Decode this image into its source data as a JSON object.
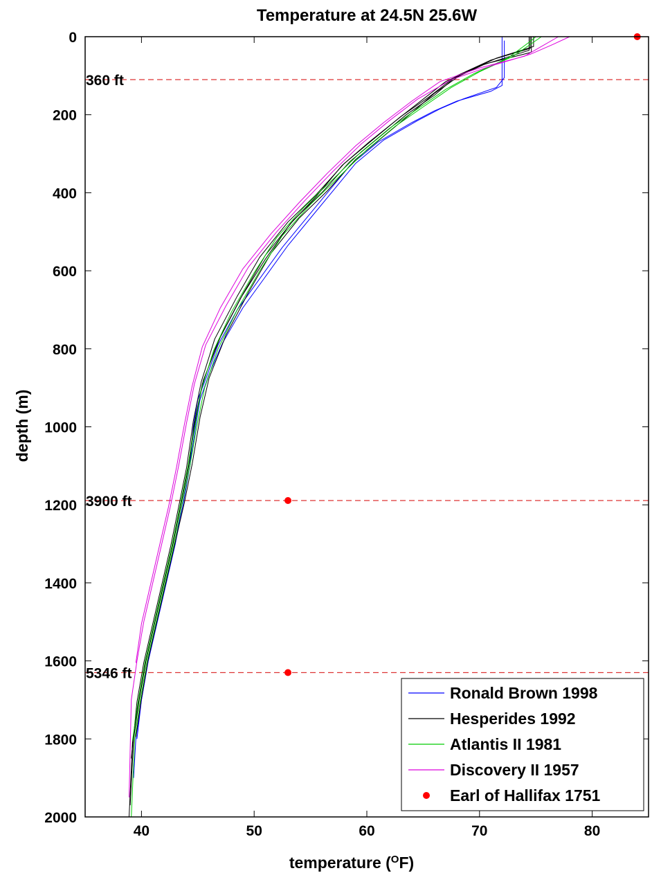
{
  "chart_data": {
    "type": "line",
    "title": "Temperature at 24.5N 25.6W",
    "xlabel": "temperature (",
    "xlabel_unit_symbol": "O",
    "xlabel_unit": "F)",
    "ylabel": "depth (m)",
    "xlim": [
      35,
      85
    ],
    "ylim": [
      0,
      2000
    ],
    "y_reversed": true,
    "grid": false,
    "legend_position": "bottom-right",
    "x_ticks": [
      "40",
      "50",
      "60",
      "70",
      "80"
    ],
    "y_ticks": [
      "0",
      "200",
      "400",
      "600",
      "800",
      "1000",
      "1200",
      "1400",
      "1600",
      "1800",
      "2000"
    ],
    "reference_lines": [
      {
        "label": "360 ft",
        "depth": 110
      },
      {
        "label": "3900 ft",
        "depth": 1189
      },
      {
        "label": "5346 ft",
        "depth": 1630
      }
    ],
    "series": [
      {
        "name": "Ronald Brown 1998",
        "color": "#0000ff",
        "style": "line",
        "curves": [
          {
            "x": [
              72.0,
              72.0,
              72.0,
              72.0,
              71.0,
              68.0,
              66.0,
              64.0,
              61.0,
              58.5,
              56.5,
              54.5,
              52.5,
              50.5,
              48.5,
              46.8,
              45.8,
              45.0,
              44.6,
              44.3,
              43.6,
              43.0,
              42.2,
              41.4,
              40.6,
              40.0,
              39.5,
              39.3
            ],
            "y": [
              0,
              100,
              110,
              125,
              140,
              165,
              190,
              220,
              270,
              330,
              400,
              470,
              540,
              620,
              700,
              790,
              870,
              930,
              1000,
              1100,
              1200,
              1300,
              1400,
              1500,
              1600,
              1700,
              1800,
              1900
            ]
          },
          {
            "x": [
              72.2,
              72.2,
              71.5,
              68.5,
              66.5,
              64.5,
              61.5,
              59.0,
              57.0,
              55.0,
              53.0,
              51.0,
              49.0,
              47.2,
              46.0,
              45.2,
              44.8,
              44.3,
              43.7,
              43.0,
              42.2,
              41.4,
              40.6,
              40.0,
              39.6
            ],
            "y": [
              10,
              105,
              130,
              160,
              185,
              215,
              265,
              325,
              395,
              465,
              535,
              615,
              695,
              785,
              865,
              930,
              1000,
              1100,
              1200,
              1300,
              1400,
              1500,
              1600,
              1700,
              1800
            ]
          }
        ]
      },
      {
        "name": "Hesperides 1992",
        "color": "#000000",
        "style": "line",
        "curves": [
          {
            "x": [
              74.5,
              74.5,
              71.0,
              68.0,
              66.0,
              63.5,
              61.0,
              58.5,
              56.0,
              53.5,
              51.0,
              49.0,
              47.0,
              45.5,
              44.8,
              44.2,
              43.5,
              42.8,
              42.0,
              41.2,
              40.4,
              39.8,
              39.3,
              39.0
            ],
            "y": [
              0,
              30,
              60,
              100,
              150,
              200,
              260,
              320,
              400,
              470,
              560,
              660,
              770,
              880,
              980,
              1100,
              1200,
              1300,
              1400,
              1500,
              1600,
              1700,
              1800,
              1970
            ]
          },
          {
            "x": [
              74.8,
              74.8,
              71.5,
              68.5,
              66.0,
              64.0,
              61.5,
              59.0,
              56.5,
              54.0,
              51.5,
              49.5,
              47.5,
              46.0,
              45.2,
              44.5,
              43.8,
              43.0,
              42.2,
              41.4,
              40.6,
              40.0,
              39.5
            ],
            "y": [
              0,
              25,
              55,
              95,
              145,
              195,
              255,
              315,
              395,
              465,
              555,
              655,
              765,
              875,
              975,
              1095,
              1195,
              1295,
              1395,
              1495,
              1595,
              1695,
              1795
            ]
          },
          {
            "x": [
              74.6,
              74.6,
              70.5,
              67.5,
              65.5,
              63.0,
              60.5,
              58.0,
              55.5,
              53.0,
              50.5,
              48.5,
              46.5,
              45.3,
              44.6,
              44.0,
              43.3,
              42.6,
              41.8,
              41.0,
              40.2,
              39.6,
              39.1
            ],
            "y": [
              0,
              40,
              70,
              110,
              155,
              205,
              265,
              325,
              405,
              475,
              565,
              665,
              775,
              885,
              985,
              1105,
              1205,
              1305,
              1405,
              1505,
              1605,
              1705,
              1850
            ]
          },
          {
            "x": [
              74.4,
              74.4,
              70.0,
              67.0,
              65.0,
              62.8,
              60.2,
              57.8,
              55.5,
              53.2,
              51.0,
              48.8,
              46.8,
              45.4,
              44.7,
              44.1,
              43.4,
              42.7,
              41.9,
              41.1,
              40.3,
              39.7,
              39.2,
              38.9
            ],
            "y": [
              0,
              35,
              75,
              115,
              160,
              210,
              270,
              330,
              410,
              480,
              570,
              670,
              780,
              890,
              990,
              1110,
              1210,
              1310,
              1410,
              1510,
              1610,
              1710,
              1810,
              2000
            ]
          }
        ]
      },
      {
        "name": "Atlantis II 1981",
        "color": "#00cc00",
        "style": "line",
        "curves": [
          {
            "x": [
              75.5,
              75.0,
              73.0,
              70.0,
              67.5,
              65.0,
              62.5,
              60.0,
              57.5,
              55.0,
              52.5,
              50.5,
              48.5,
              46.8,
              45.6,
              44.9,
              44.3,
              43.6,
              42.9,
              42.1,
              41.3,
              40.5,
              39.9,
              39.4,
              39.1
            ],
            "y": [
              0,
              10,
              50,
              90,
              130,
              180,
              230,
              290,
              360,
              430,
              510,
              600,
              700,
              800,
              900,
              1000,
              1100,
              1200,
              1300,
              1400,
              1500,
              1600,
              1700,
              1800,
              2000
            ]
          },
          {
            "x": [
              75.0,
              74.5,
              72.5,
              69.5,
              67.0,
              64.5,
              62.0,
              59.5,
              57.0,
              54.5,
              52.0,
              50.0,
              48.0,
              46.4,
              45.3,
              44.7,
              44.1,
              43.4,
              42.7,
              41.9,
              41.1,
              40.3,
              39.7,
              39.2
            ],
            "y": [
              0,
              12,
              55,
              95,
              135,
              185,
              235,
              295,
              365,
              435,
              515,
              605,
              705,
              805,
              905,
              1005,
              1105,
              1205,
              1305,
              1405,
              1505,
              1605,
              1705,
              1805
            ]
          }
        ]
      },
      {
        "name": "Discovery II 1957",
        "color": "#dd00dd",
        "style": "line",
        "curves": [
          {
            "x": [
              78.0,
              76.5,
              74.5,
              71.0,
              67.5,
              64.5,
              62.0,
              59.5,
              57.0,
              54.5,
              52.0,
              49.5,
              47.5,
              45.7,
              44.7,
              44.0,
              43.3,
              42.6,
              41.8,
              41.0,
              40.2,
              39.6,
              39.1,
              38.9
            ],
            "y": [
              0,
              20,
              45,
              75,
              110,
              160,
              215,
              275,
              345,
              420,
              500,
              590,
              690,
              790,
              890,
              990,
              1100,
              1200,
              1300,
              1400,
              1500,
              1600,
              1700,
              1950
            ]
          },
          {
            "x": [
              77.0,
              75.5,
              74.0,
              70.0,
              66.5,
              64.0,
              61.5,
              59.0,
              56.5,
              54.0,
              51.5,
              49.0,
              47.0,
              45.4,
              44.5,
              43.8,
              43.1,
              42.4,
              41.6,
              40.8,
              40.0,
              39.5
            ],
            "y": [
              0,
              25,
              50,
              80,
              115,
              165,
              220,
              280,
              350,
              425,
              505,
              595,
              695,
              795,
              895,
              995,
              1105,
              1205,
              1305,
              1405,
              1505,
              1605
            ]
          }
        ]
      },
      {
        "name": "Earl of Hallifax 1751",
        "color": "#ff0000",
        "style": "marker",
        "points": [
          {
            "x": 84.0,
            "y": 0
          },
          {
            "x": 53.0,
            "y": 1189
          },
          {
            "x": 53.0,
            "y": 1630
          }
        ]
      }
    ]
  }
}
